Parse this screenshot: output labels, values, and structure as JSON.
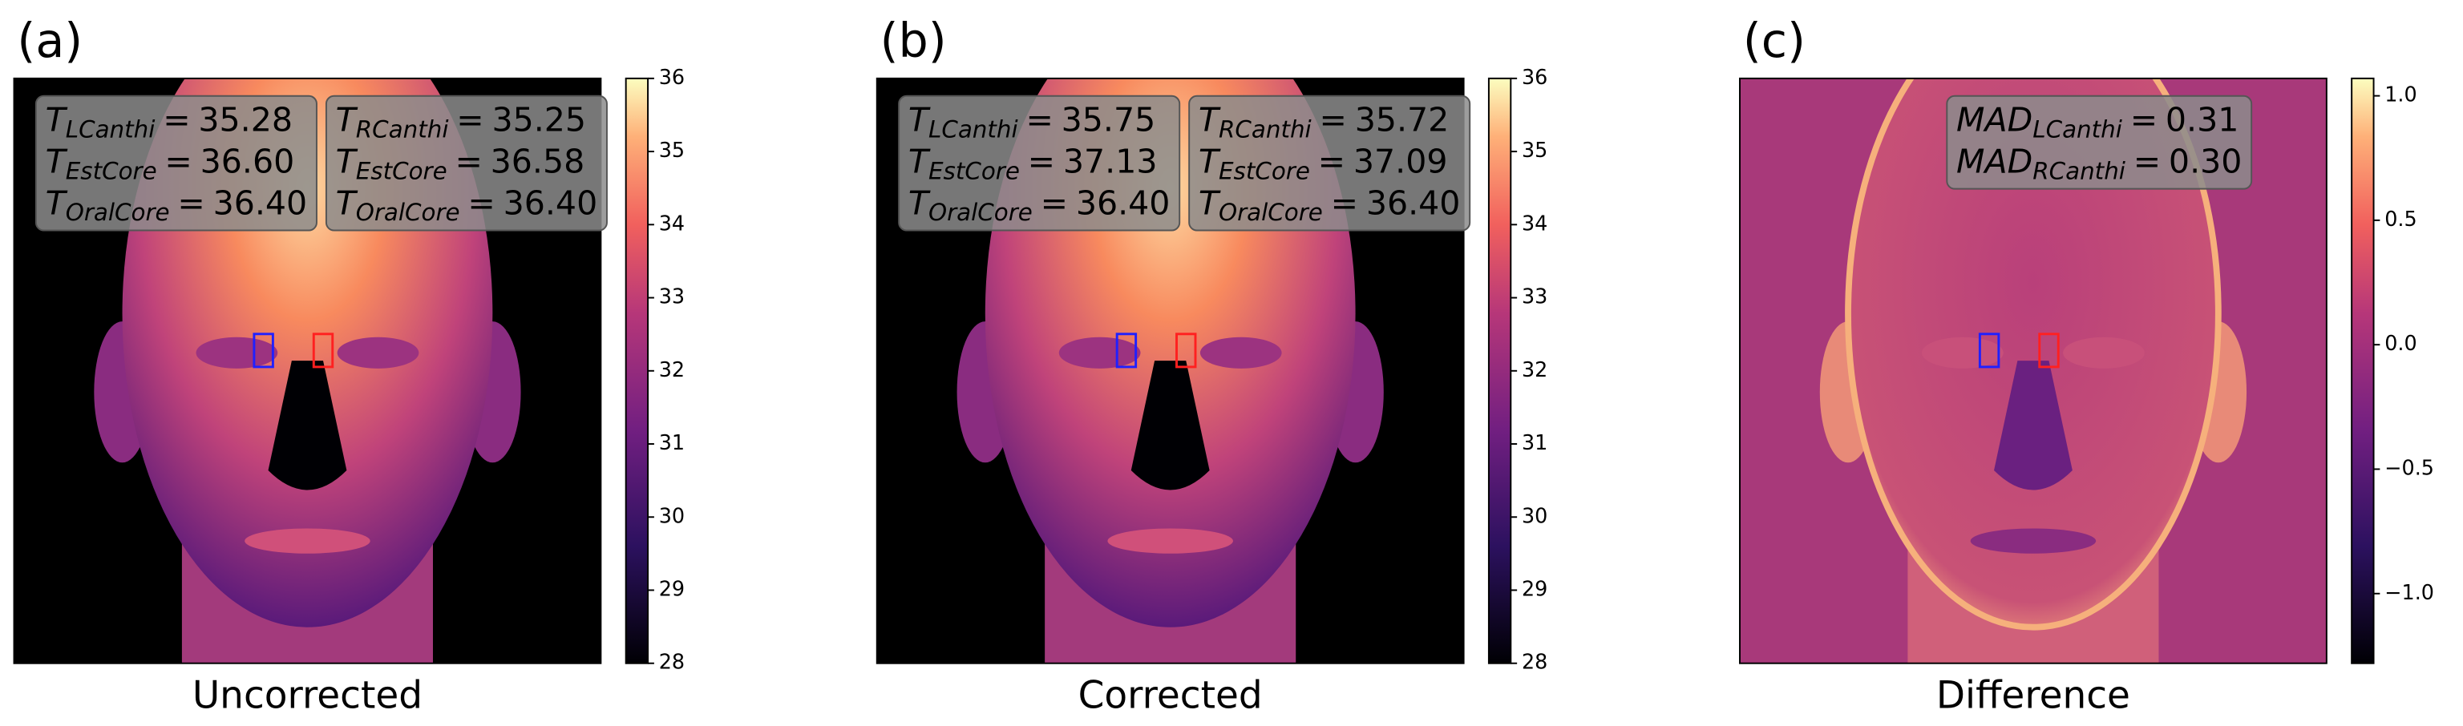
{
  "chart_data": [
    {
      "type": "image",
      "panel_label": "(a)",
      "xlabel": "Uncorrected",
      "cmap": "magma",
      "background": "#000000",
      "clim": [
        28,
        36
      ],
      "cticks": [
        28,
        29,
        30,
        31,
        32,
        33,
        34,
        35,
        36
      ],
      "annotations": [
        [
          {
            "symbol": "T",
            "subscript": "LCanthi",
            "operator": "=",
            "value": "35.28"
          },
          {
            "symbol": "T",
            "subscript": "EstCore",
            "operator": "=",
            "value": "36.60"
          },
          {
            "symbol": "T",
            "subscript": "OralCore",
            "operator": "=",
            "value": "36.40"
          }
        ],
        [
          {
            "symbol": "T",
            "subscript": "RCanthi",
            "operator": "=",
            "value": "35.25"
          },
          {
            "symbol": "T",
            "subscript": "EstCore",
            "operator": "=",
            "value": "36.58"
          },
          {
            "symbol": "T",
            "subscript": "OralCore",
            "operator": "=",
            "value": "36.40"
          }
        ]
      ]
    },
    {
      "type": "image",
      "panel_label": "(b)",
      "xlabel": "Corrected",
      "cmap": "magma",
      "background": "#000000",
      "clim": [
        28,
        36
      ],
      "cticks": [
        28,
        29,
        30,
        31,
        32,
        33,
        34,
        35,
        36
      ],
      "annotations": [
        [
          {
            "symbol": "T",
            "subscript": "LCanthi",
            "operator": "=",
            "value": "35.75"
          },
          {
            "symbol": "T",
            "subscript": "EstCore",
            "operator": "=",
            "value": "37.13"
          },
          {
            "symbol": "T",
            "subscript": "OralCore",
            "operator": "=",
            "value": "36.40"
          }
        ],
        [
          {
            "symbol": "T",
            "subscript": "RCanthi",
            "operator": "=",
            "value": "35.72"
          },
          {
            "symbol": "T",
            "subscript": "EstCore",
            "operator": "=",
            "value": "37.09"
          },
          {
            "symbol": "T",
            "subscript": "OralCore",
            "operator": "=",
            "value": "36.40"
          }
        ]
      ]
    },
    {
      "type": "image",
      "panel_label": "(c)",
      "xlabel": "Difference",
      "cmap": "magma",
      "background": "#a8397a",
      "clim": [
        -1.28,
        1.07
      ],
      "cticks": [
        {
          "value": -1.0,
          "label": "−1.0"
        },
        {
          "value": -0.5,
          "label": "−0.5"
        },
        {
          "value": 0.0,
          "label": "0.0"
        },
        {
          "value": 0.5,
          "label": "0.5"
        },
        {
          "value": 1.0,
          "label": "1.0"
        }
      ],
      "annotations": [
        [
          {
            "symbol": "MAD",
            "subscript": "LCanthi",
            "operator": "=",
            "value": "0.31"
          },
          {
            "symbol": "MAD",
            "subscript": "RCanthi",
            "operator": "=",
            "value": "0.30"
          }
        ]
      ]
    }
  ]
}
